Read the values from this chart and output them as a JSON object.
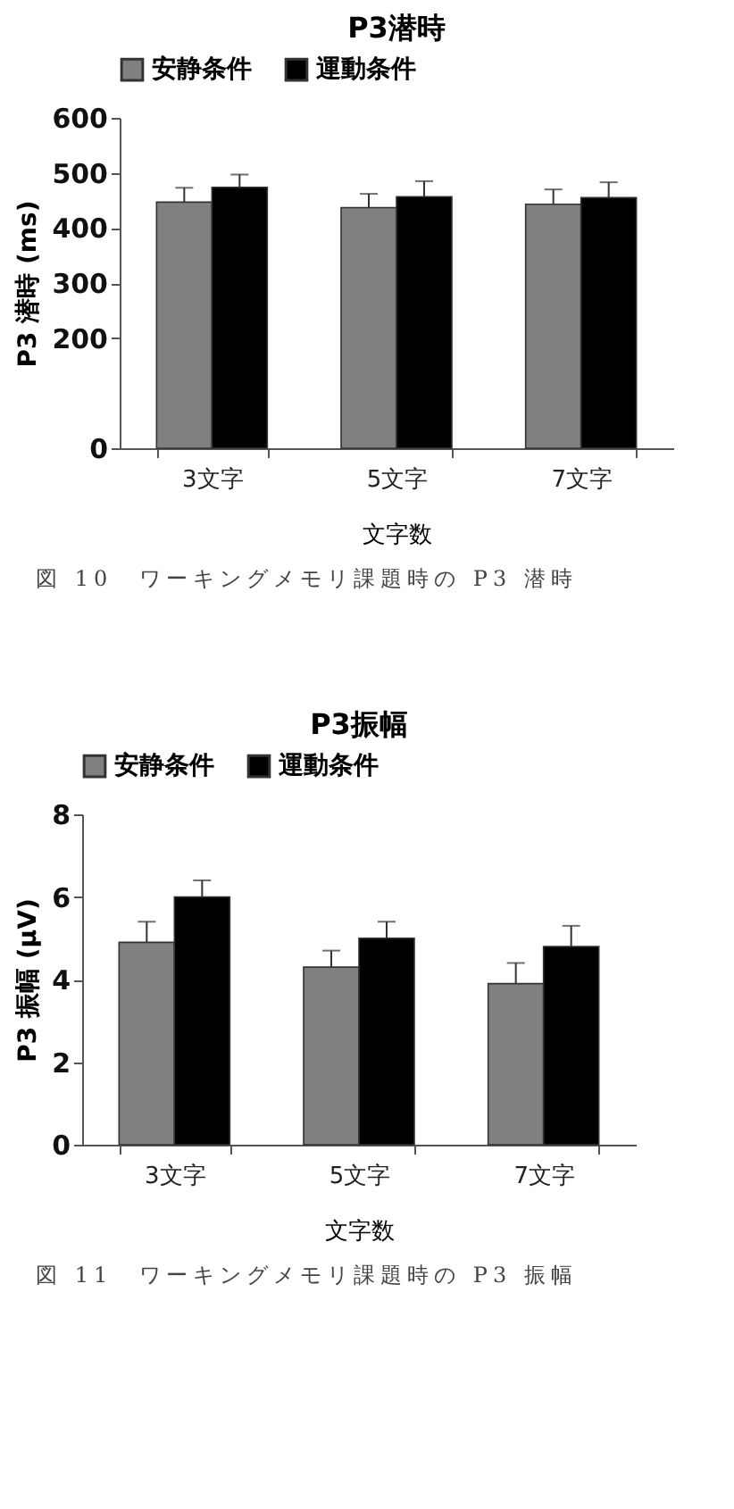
{
  "chart_data": [
    {
      "type": "bar",
      "title": "P3潜時",
      "xlabel": "文字数",
      "ylabel": "P3 潜時 (ms)",
      "categories": [
        "3文字",
        "5文字",
        "7文字"
      ],
      "series": [
        {
          "name": "安静条件",
          "color": "#808080",
          "values": [
            447,
            437,
            443
          ],
          "errors": [
            [
              447,
              473
            ],
            [
              437,
              462
            ],
            [
              443,
              470
            ]
          ]
        },
        {
          "name": "運動条件",
          "color": "#000000",
          "values": [
            474,
            457,
            455
          ],
          "errors": [
            [
              474,
              497
            ],
            [
              457,
              485
            ],
            [
              455,
              483
            ]
          ]
        }
      ],
      "ylim": [
        0,
        600
      ],
      "yticks": [
        0,
        200,
        300,
        400,
        500,
        600
      ],
      "grid": false,
      "legend": "top",
      "annotations": [
        "図 10　ワーキングメモリ課題時の P3 潜時"
      ]
    },
    {
      "type": "bar",
      "title": "P3振幅",
      "xlabel": "文字数",
      "ylabel": "P3 振幅 (μV)",
      "categories": [
        "3文字",
        "5文字",
        "7文字"
      ],
      "series": [
        {
          "name": "安静条件",
          "color": "#808080",
          "values": [
            4.9,
            4.3,
            3.9
          ],
          "errors": [
            [
              4.9,
              5.4
            ],
            [
              4.3,
              4.7
            ],
            [
              3.9,
              4.4
            ]
          ]
        },
        {
          "name": "運動条件",
          "color": "#000000",
          "values": [
            6.0,
            5.0,
            4.8
          ],
          "errors": [
            [
              6.0,
              6.4
            ],
            [
              5.0,
              5.4
            ],
            [
              4.8,
              5.3
            ]
          ]
        }
      ],
      "ylim": [
        0,
        8
      ],
      "yticks": [
        0,
        2,
        4,
        6,
        8
      ],
      "grid": false,
      "legend": "top",
      "annotations": [
        "図 11　ワーキングメモリ課題時の P3 振幅"
      ]
    }
  ]
}
